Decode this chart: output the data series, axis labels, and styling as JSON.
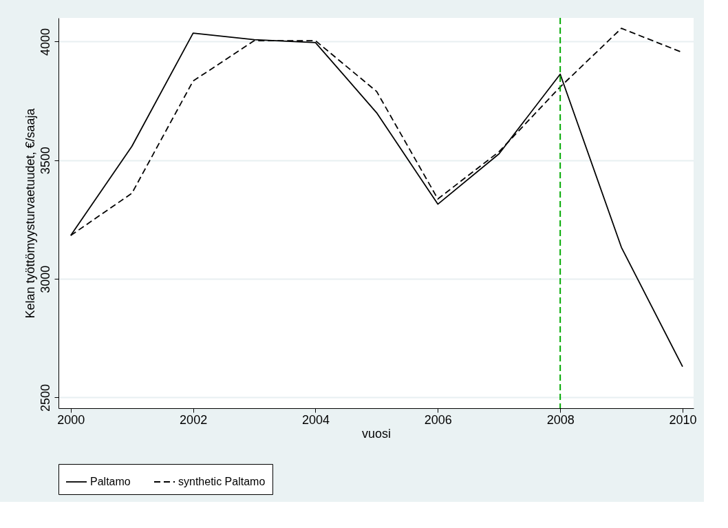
{
  "chart_data": {
    "type": "line",
    "xlabel": "vuosi",
    "ylabel": "Kelan työttömyysturvaetuudet, €/saaja",
    "x": [
      2000,
      2001,
      2002,
      2003,
      2004,
      2005,
      2006,
      2007,
      2008,
      2009,
      2010
    ],
    "series": [
      {
        "name": "Paltamo",
        "color": "#000000",
        "line_style": "solid",
        "values": [
          3183,
          3559,
          4036,
          4008,
          3996,
          3700,
          3315,
          3527,
          3863,
          3133,
          2630
        ]
      },
      {
        "name": "synthetic Paltamo",
        "color": "#000000",
        "line_style": "dashed",
        "values": [
          3183,
          3361,
          3834,
          4004,
          4004,
          3790,
          3337,
          3536,
          3809,
          4056,
          3954
        ]
      }
    ],
    "xlim": [
      1999.8,
      2010.18
    ],
    "ylim": [
      2455,
      4100
    ],
    "xticks": [
      2000,
      2002,
      2004,
      2006,
      2008,
      2010
    ],
    "yticks": [
      2500,
      3000,
      3500,
      4000
    ],
    "grid": "y",
    "legend": "bottom",
    "marker": "none",
    "ref_lines": [
      {
        "axis": "x",
        "value": 2008,
        "color": "#00aa00",
        "line_style": "dashed"
      }
    ]
  }
}
